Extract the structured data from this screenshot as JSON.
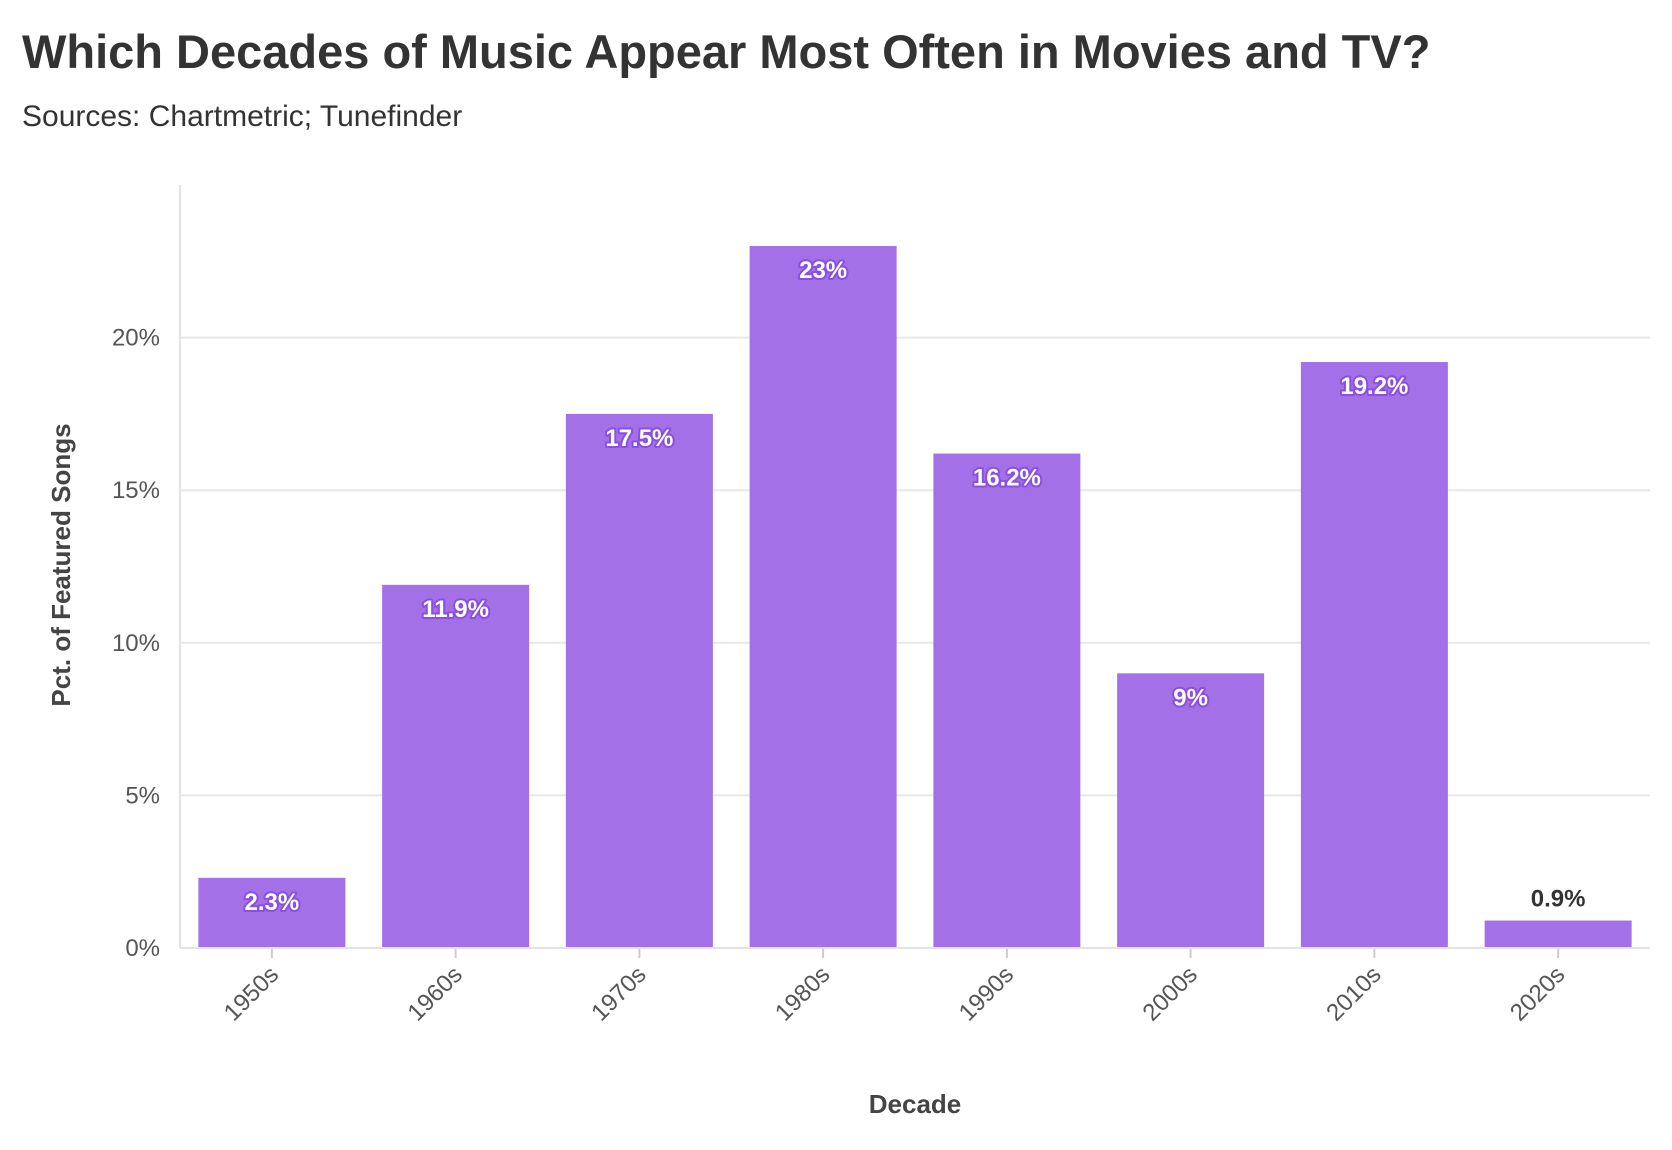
{
  "chart_data": {
    "type": "bar",
    "title": "Which Decades of Music Appear Most Often in Movies and TV?",
    "subtitle": "Sources: Chartmetric; Tunefinder",
    "xlabel": "Decade",
    "ylabel": "Pct. of Featured Songs",
    "categories": [
      "1950s",
      "1960s",
      "1970s",
      "1980s",
      "1990s",
      "2000s",
      "2010s",
      "2020s"
    ],
    "values": [
      2.3,
      11.9,
      17.5,
      23,
      16.2,
      9,
      19.2,
      0.9
    ],
    "data_labels": [
      "2.3%",
      "11.9%",
      "17.5%",
      "23%",
      "16.2%",
      "9%",
      "19.2%",
      "0.9%"
    ],
    "ylim": [
      0,
      25
    ],
    "yticks": [
      0,
      5,
      10,
      15,
      20
    ],
    "ytick_labels": [
      "0%",
      "5%",
      "10%",
      "15%",
      "20%"
    ],
    "grid": true,
    "bar_color": "#a470e8",
    "label_inside_color": "#ffffff",
    "label_outside_color": "#333333"
  }
}
